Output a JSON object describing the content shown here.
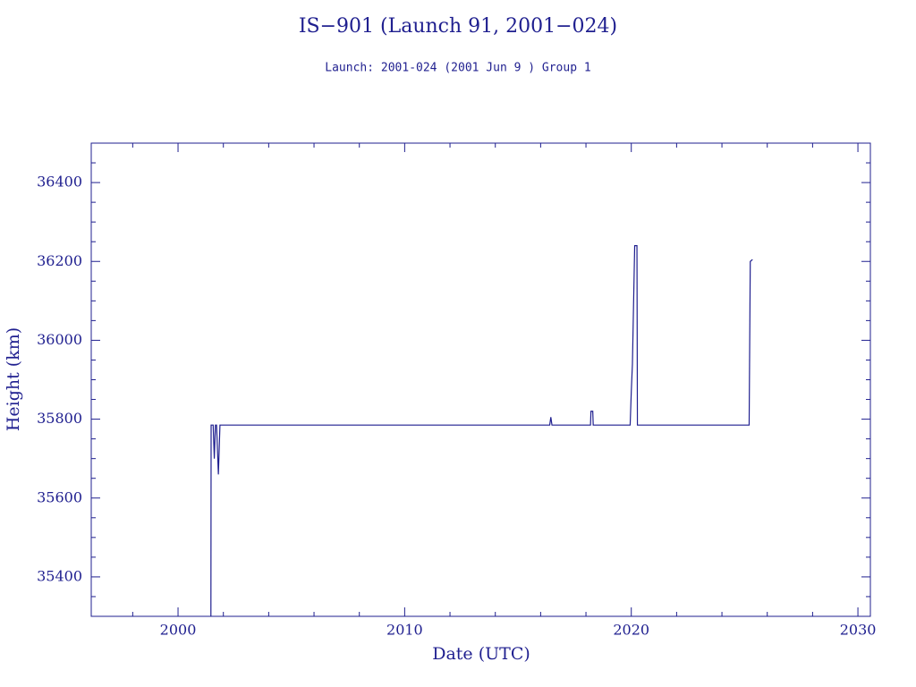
{
  "chart_data": {
    "type": "line",
    "title": "IS−901 (Launch 91, 2001−024)",
    "subtitle": "Launch: 2001-024  (2001 Jun  9 )  Group 1",
    "x_label": "Date (UTC)",
    "y_label": "Height (km)",
    "color": "#1f1f8f",
    "x": [
      2001.45,
      2001.46,
      2001.55,
      2001.6,
      2001.65,
      2001.7,
      2001.78,
      2001.85,
      2001.9,
      2016.4,
      2016.45,
      2016.5,
      2018.2,
      2018.22,
      2018.3,
      2018.32,
      2019.95,
      2020.0,
      2020.05,
      2020.1,
      2020.15,
      2020.2,
      2020.25,
      2020.27,
      2025.2,
      2025.25,
      2025.35
    ],
    "values": [
      35300,
      35785,
      35785,
      35700,
      35785,
      35785,
      35660,
      35785,
      35785,
      35785,
      35805,
      35785,
      35785,
      35820,
      35820,
      35785,
      35785,
      35870,
      35940,
      36090,
      36240,
      36240,
      36240,
      35785,
      35785,
      36200,
      36205
    ],
    "xlim": [
      1996.17,
      2030.55
    ],
    "ylim": [
      35300,
      36500
    ],
    "xticks": [
      2000,
      2010,
      2020,
      2030
    ],
    "yticks": [
      35400,
      35600,
      35800,
      36000,
      36200,
      36400
    ],
    "xminorticks": [
      1998,
      2002,
      2004,
      2006,
      2008,
      2012,
      2014,
      2016,
      2018,
      2022,
      2024,
      2026,
      2028
    ],
    "yminorticks": [
      35350,
      35450,
      35500,
      35550,
      35650,
      35700,
      35750,
      35850,
      35900,
      35950,
      36050,
      36100,
      36150,
      36250,
      36300,
      36350,
      36450
    ]
  }
}
